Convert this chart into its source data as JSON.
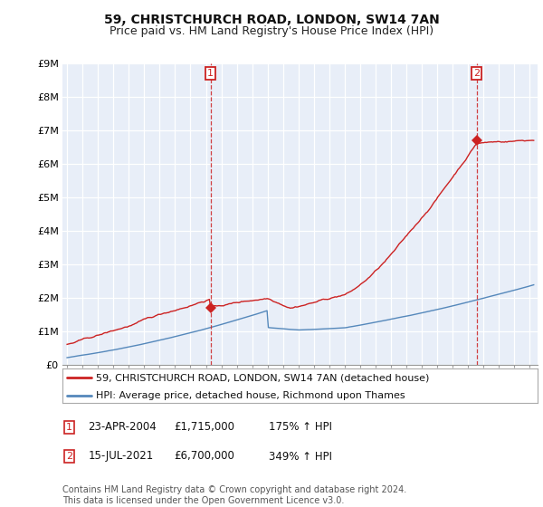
{
  "title": "59, CHRISTCHURCH ROAD, LONDON, SW14 7AN",
  "subtitle": "Price paid vs. HM Land Registry's House Price Index (HPI)",
  "ylim": [
    0,
    9000000
  ],
  "yticks": [
    0,
    1000000,
    2000000,
    3000000,
    4000000,
    5000000,
    6000000,
    7000000,
    8000000,
    9000000
  ],
  "ytick_labels": [
    "£0",
    "£1M",
    "£2M",
    "£3M",
    "£4M",
    "£5M",
    "£6M",
    "£7M",
    "£8M",
    "£9M"
  ],
  "background_color": "#ffffff",
  "plot_bg_color": "#e8eef8",
  "grid_color": "#ffffff",
  "sale1_year": 2004.3,
  "sale1_price": 1715000,
  "sale2_year": 2021.55,
  "sale2_price": 6700000,
  "line1_color": "#cc2222",
  "line2_color": "#5588bb",
  "dashed_color": "#cc2222",
  "legend_line1": "59, CHRISTCHURCH ROAD, LONDON, SW14 7AN (detached house)",
  "legend_line2": "HPI: Average price, detached house, Richmond upon Thames",
  "footer": "Contains HM Land Registry data © Crown copyright and database right 2024.\nThis data is licensed under the Open Government Licence v3.0.",
  "title_fontsize": 10,
  "subtitle_fontsize": 9,
  "tick_fontsize": 8,
  "legend_fontsize": 8,
  "annotation_fontsize": 8.5
}
